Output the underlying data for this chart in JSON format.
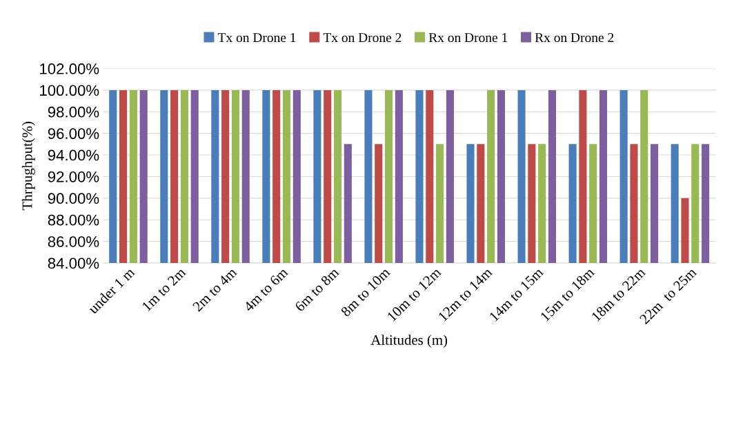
{
  "chart_data": {
    "type": "bar",
    "xlabel": "Altitudes (m)",
    "ylabel": "Thrpughput(%)",
    "categories": [
      "under 1 m",
      "1m to 2m",
      "2m to 4m",
      "4m to 6m",
      "6m to 8m",
      "8m to 10m",
      "10m to 12m",
      "12m to 14m",
      "14m to 15m",
      "15m to 18m",
      "18m to 22m",
      "22m  to 25m"
    ],
    "series": [
      {
        "name": "Tx on Drone 1",
        "color": "#4a7ebb",
        "values": [
          100,
          100,
          100,
          100,
          100,
          100,
          100,
          95,
          100,
          95,
          100,
          95
        ]
      },
      {
        "name": "Tx on Drone 2",
        "color": "#be4b48",
        "values": [
          100,
          100,
          100,
          100,
          100,
          95,
          100,
          95,
          95,
          100,
          95,
          90
        ]
      },
      {
        "name": "Rx on Drone 1",
        "color": "#98b954",
        "values": [
          100,
          100,
          100,
          100,
          100,
          100,
          95,
          100,
          95,
          95,
          100,
          95
        ]
      },
      {
        "name": "Rx on Drone 2",
        "color": "#7d5fa0",
        "values": [
          100,
          100,
          100,
          100,
          95,
          100,
          100,
          100,
          100,
          100,
          95,
          95
        ]
      }
    ],
    "ylim": [
      84,
      102
    ],
    "yticks": [
      {
        "value": 84,
        "label": "84.00%"
      },
      {
        "value": 86,
        "label": "86.00%"
      },
      {
        "value": 88,
        "label": "88.00%"
      },
      {
        "value": 90,
        "label": "90.00%"
      },
      {
        "value": 92,
        "label": "92.00%"
      },
      {
        "value": 94,
        "label": "94.00%"
      },
      {
        "value": 96,
        "label": "96.00%"
      },
      {
        "value": 98,
        "label": "98.00%"
      },
      {
        "value": 100,
        "label": "100.00%"
      },
      {
        "value": 102,
        "label": "102.00%"
      }
    ],
    "grid": "y",
    "legend": "top"
  }
}
